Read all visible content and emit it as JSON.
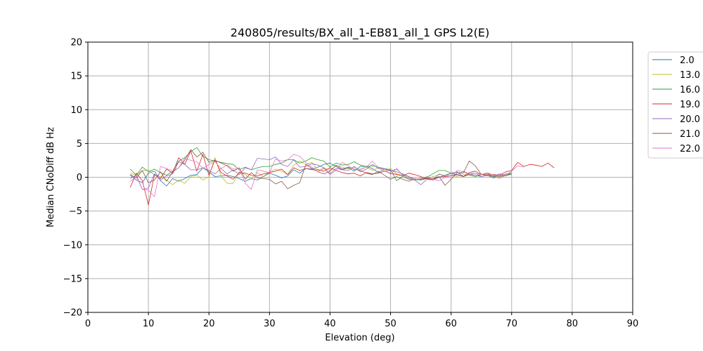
{
  "chart_data": {
    "type": "line",
    "title": "240805/results/BX_all_1-EB81_all_1 GPS L2(E)",
    "xlabel": "Elevation (deg)",
    "ylabel": "Median CNoDiff dB Hz",
    "xlim": [
      0,
      90
    ],
    "ylim": [
      -20,
      20
    ],
    "xticks": [
      0,
      10,
      20,
      30,
      40,
      50,
      60,
      70,
      80,
      90
    ],
    "yticks": [
      -20,
      -15,
      -10,
      -5,
      0,
      5,
      10,
      15,
      20
    ],
    "grid": true,
    "legend_position": "outside-top-right",
    "series": [
      {
        "name": "2.0",
        "color": "#1f77b4",
        "x": [
          7,
          8,
          9,
          10,
          11,
          12,
          13,
          14,
          15,
          16,
          17,
          18,
          19,
          20,
          21,
          22,
          23,
          24,
          25,
          26,
          27,
          28,
          29,
          30,
          31,
          32,
          33,
          34,
          35,
          36,
          37,
          38,
          39,
          40,
          41,
          42,
          43,
          44,
          45,
          46,
          47,
          48,
          49,
          50,
          51,
          52,
          53,
          54,
          55,
          56,
          57,
          58,
          59,
          60,
          61,
          62,
          63,
          64,
          65,
          66,
          67,
          68,
          69,
          70
        ],
        "values": [
          0.3,
          -0.4,
          -0.8,
          0.6,
          0.9,
          -0.5,
          -1.3,
          -0.2,
          -0.6,
          -0.2,
          0.3,
          0.4,
          1.4,
          0.8,
          0.1,
          0.2,
          0.3,
          0.1,
          -0.2,
          -0.6,
          -0.2,
          -0.4,
          0.1,
          0.6,
          0.3,
          -0.1,
          0.2,
          1.1,
          0.6,
          1.3,
          1.2,
          1.5,
          1.9,
          2.1,
          1.6,
          1.1,
          1.4,
          0.9,
          1.6,
          1.6,
          1.3,
          0.7,
          1.2,
          0.9,
          1.2,
          0.4,
          0.1,
          -0.3,
          -0.4,
          -0.2,
          -0.4,
          0.0,
          0.3,
          0.6,
          0.8,
          0.1,
          0.5,
          0.3,
          0.1,
          0.3,
          0.1,
          0.0,
          0.3,
          0.5
        ]
      },
      {
        "name": "13.0",
        "color": "#bcbd22",
        "x": [
          7,
          8,
          9,
          10,
          11,
          12,
          13,
          14,
          15,
          16,
          17,
          18,
          19,
          20,
          21,
          22,
          23,
          24,
          25,
          26,
          27,
          28,
          29,
          30,
          31,
          32,
          33,
          34,
          35,
          36,
          37,
          38,
          39,
          40,
          41,
          42,
          43,
          44,
          45,
          46,
          47,
          48,
          49,
          50,
          51,
          52,
          53,
          54,
          55,
          56,
          57,
          58,
          59,
          60,
          61,
          62,
          63,
          64,
          65,
          66,
          67,
          68,
          69,
          70
        ],
        "values": [
          0.6,
          0.3,
          1.0,
          1.1,
          0.3,
          0.1,
          -0.4,
          -1.1,
          -0.4,
          -0.9,
          0.1,
          0.3,
          -0.4,
          0.1,
          2.9,
          0.2,
          -0.9,
          -0.9,
          0.8,
          0.4,
          -0.3,
          0.7,
          0.1,
          0.8,
          1.2,
          0.9,
          0.4,
          1.8,
          2.4,
          1.9,
          2.2,
          1.0,
          1.4,
          1.0,
          1.7,
          1.5,
          1.2,
          1.5,
          1.1,
          1.5,
          1.0,
          1.4,
          0.9,
          1.3,
          0.5,
          0.3,
          -0.2,
          -0.4,
          -0.1,
          -0.2,
          0.1,
          0.4,
          0.3,
          0.3,
          0.1,
          0.4,
          0.3,
          0.1,
          0.5,
          0.2,
          0.4,
          0.0,
          0.3,
          0.4
        ]
      },
      {
        "name": "16.0",
        "color": "#2ca02c",
        "x": [
          7,
          8,
          9,
          10,
          11,
          12,
          13,
          14,
          15,
          16,
          17,
          18,
          19,
          20,
          21,
          22,
          23,
          24,
          25,
          26,
          27,
          28,
          29,
          30,
          31,
          32,
          33,
          34,
          35,
          36,
          37,
          38,
          39,
          40,
          41,
          42,
          43,
          44,
          45,
          46,
          47,
          48,
          49,
          50,
          51,
          52,
          53,
          54,
          55,
          56,
          57,
          58,
          59,
          60,
          61,
          62,
          63,
          64,
          65,
          66,
          67,
          68,
          69,
          70
        ],
        "values": [
          1.2,
          0.3,
          1.5,
          0.8,
          1.2,
          0.7,
          0.3,
          0.9,
          2.4,
          2.9,
          3.8,
          4.4,
          3.1,
          2.6,
          2.4,
          2.2,
          2.0,
          1.9,
          1.1,
          1.5,
          1.1,
          1.4,
          1.6,
          1.6,
          1.9,
          2.1,
          2.6,
          2.6,
          2.1,
          2.4,
          2.9,
          2.6,
          2.4,
          1.5,
          2.1,
          1.8,
          1.9,
          2.3,
          1.8,
          1.6,
          1.7,
          1.5,
          1.3,
          1.1,
          -0.5,
          0.1,
          -0.3,
          -0.4,
          -0.3,
          0.0,
          0.5,
          1.0,
          1.0,
          0.6,
          0.4,
          0.1,
          0.4,
          0.1,
          0.4,
          0.5,
          0.1,
          0.3,
          0.2,
          0.5
        ]
      },
      {
        "name": "19.0",
        "color": "#d62728",
        "x": [
          7,
          8,
          9,
          10,
          11,
          12,
          13,
          14,
          15,
          16,
          17,
          18,
          19,
          20,
          21,
          22,
          23,
          24,
          25,
          26,
          27,
          28,
          29,
          30,
          31,
          32,
          33,
          34,
          35,
          36,
          37,
          38,
          39,
          40,
          41,
          42,
          43,
          44,
          45,
          46,
          47,
          48,
          49,
          50,
          51,
          52,
          53,
          54,
          55,
          56,
          57,
          58,
          59,
          60,
          61,
          62,
          63,
          64,
          65,
          66,
          67,
          68,
          69,
          70,
          71,
          72,
          73,
          74,
          75,
          76,
          77
        ],
        "values": [
          -1.5,
          0.6,
          -0.5,
          -4.1,
          0.4,
          -0.2,
          1.2,
          0.6,
          2.9,
          1.9,
          3.9,
          0.9,
          3.4,
          0.3,
          2.6,
          0.7,
          0.2,
          -0.3,
          0.7,
          0.6,
          0.3,
          0.2,
          0.5,
          0.7,
          0.9,
          1.2,
          0.4,
          1.4,
          1.0,
          1.3,
          1.1,
          1.1,
          0.9,
          1.4,
          1.0,
          0.7,
          0.5,
          0.6,
          0.2,
          0.7,
          0.5,
          0.6,
          0.9,
          0.6,
          0.4,
          0.2,
          0.6,
          0.4,
          0.1,
          -0.2,
          -0.3,
          0.0,
          0.1,
          0.2,
          0.4,
          0.1,
          0.7,
          0.9,
          0.4,
          0.5,
          0.4,
          0.3,
          0.8,
          1.0,
          2.2,
          1.6,
          1.9,
          1.8,
          1.6,
          2.1,
          1.4
        ]
      },
      {
        "name": "20.0",
        "color": "#9467bd",
        "x": [
          7,
          8,
          9,
          10,
          11,
          12,
          13,
          14,
          15,
          16,
          17,
          18,
          19,
          20,
          21,
          22,
          23,
          24,
          25,
          26,
          27,
          28,
          29,
          30,
          31,
          32,
          33,
          34,
          35,
          36,
          37,
          38,
          39,
          40,
          41,
          42,
          43,
          44,
          45,
          46,
          47,
          48,
          49,
          50,
          51,
          52,
          53,
          54,
          55,
          56,
          57,
          58,
          59,
          60,
          61,
          62,
          63,
          64,
          65,
          66,
          67,
          68,
          69,
          70
        ],
        "values": [
          -0.2,
          0.3,
          -1.8,
          -1.6,
          0.5,
          -0.4,
          0.2,
          0.5,
          2.3,
          1.9,
          1.1,
          1.1,
          1.4,
          1.0,
          0.5,
          1.3,
          0.5,
          1.1,
          0.4,
          1.4,
          1.1,
          2.8,
          2.7,
          2.6,
          3.0,
          1.9,
          1.6,
          2.6,
          1.5,
          1.6,
          2.0,
          1.8,
          1.4,
          0.5,
          1.3,
          1.1,
          1.0,
          1.6,
          0.8,
          1.2,
          1.9,
          1.3,
          1.2,
          1.0,
          0.8,
          0.5,
          0.1,
          -0.4,
          -1.1,
          -0.3,
          -0.4,
          0.5,
          0.2,
          0.6,
          0.3,
          0.9,
          0.5,
          0.6,
          0.1,
          0.3,
          0.2,
          0.5,
          0.3,
          0.8
        ]
      },
      {
        "name": "21.0",
        "color": "#8c564b",
        "x": [
          7,
          8,
          9,
          10,
          11,
          12,
          13,
          14,
          15,
          16,
          17,
          18,
          19,
          20,
          21,
          22,
          23,
          24,
          25,
          26,
          27,
          28,
          29,
          30,
          31,
          32,
          33,
          34,
          35,
          36,
          37,
          38,
          39,
          40,
          41,
          42,
          43,
          44,
          45,
          46,
          47,
          48,
          49,
          50,
          51,
          52,
          53,
          54,
          55,
          56,
          57,
          58,
          59,
          60,
          61,
          62,
          63,
          64,
          65,
          66,
          67,
          68,
          69,
          70
        ],
        "values": [
          0.4,
          -0.1,
          1.0,
          -0.8,
          -0.4,
          0.8,
          -0.6,
          0.8,
          1.4,
          2.5,
          4.1,
          3.0,
          3.7,
          2.2,
          2.5,
          2.1,
          1.7,
          0.9,
          1.4,
          -0.3,
          0.7,
          -0.1,
          -0.2,
          -0.3,
          -1.0,
          -0.6,
          -1.7,
          -1.2,
          -0.8,
          1.9,
          1.3,
          0.8,
          0.5,
          0.9,
          1.8,
          1.2,
          1.5,
          1.2,
          1.0,
          0.6,
          0.4,
          0.9,
          0.3,
          -0.3,
          0.1,
          -0.3,
          -0.6,
          -0.2,
          -0.4,
          -0.1,
          -0.2,
          0.1,
          -1.2,
          -0.3,
          0.7,
          0.6,
          2.4,
          1.7,
          0.4,
          0.3,
          -0.1,
          0.1,
          0.5,
          0.5
        ]
      },
      {
        "name": "22.0",
        "color": "#e377c2",
        "x": [
          7,
          8,
          9,
          10,
          11,
          12,
          13,
          14,
          15,
          16,
          17,
          18,
          19,
          20,
          21,
          22,
          23,
          24,
          25,
          26,
          27,
          28,
          29,
          30,
          31,
          32,
          33,
          34,
          35,
          36,
          37,
          38,
          39,
          40,
          41,
          42,
          43,
          44,
          45,
          46,
          47,
          48,
          49,
          50,
          51,
          52,
          53,
          54,
          55,
          56,
          57,
          58,
          59,
          60,
          61,
          62,
          63,
          64,
          65,
          66,
          67,
          68,
          69,
          70,
          71,
          72
        ],
        "values": [
          -0.6,
          0.1,
          -1.8,
          -1.9,
          -2.9,
          1.6,
          1.3,
          0.9,
          1.4,
          2.8,
          2.5,
          2.3,
          1.3,
          1.9,
          2.3,
          1.3,
          1.8,
          1.2,
          1.3,
          -0.9,
          -1.8,
          1.1,
          0.9,
          0.7,
          2.7,
          2.4,
          2.6,
          3.4,
          3.1,
          2.2,
          1.5,
          0.8,
          1.3,
          0.4,
          1.0,
          2.2,
          1.7,
          1.1,
          1.2,
          1.5,
          2.4,
          1.4,
          1.3,
          0.4,
          1.3,
          0.3,
          -0.1,
          -0.3,
          -0.2,
          0.1,
          -0.3,
          -0.5,
          0.0,
          0.2,
          1.0,
          0.8,
          0.4,
          0.6,
          0.4,
          0.7,
          0.3,
          -0.2,
          0.3,
          0.9,
          1.7,
          1.5
        ]
      }
    ]
  }
}
